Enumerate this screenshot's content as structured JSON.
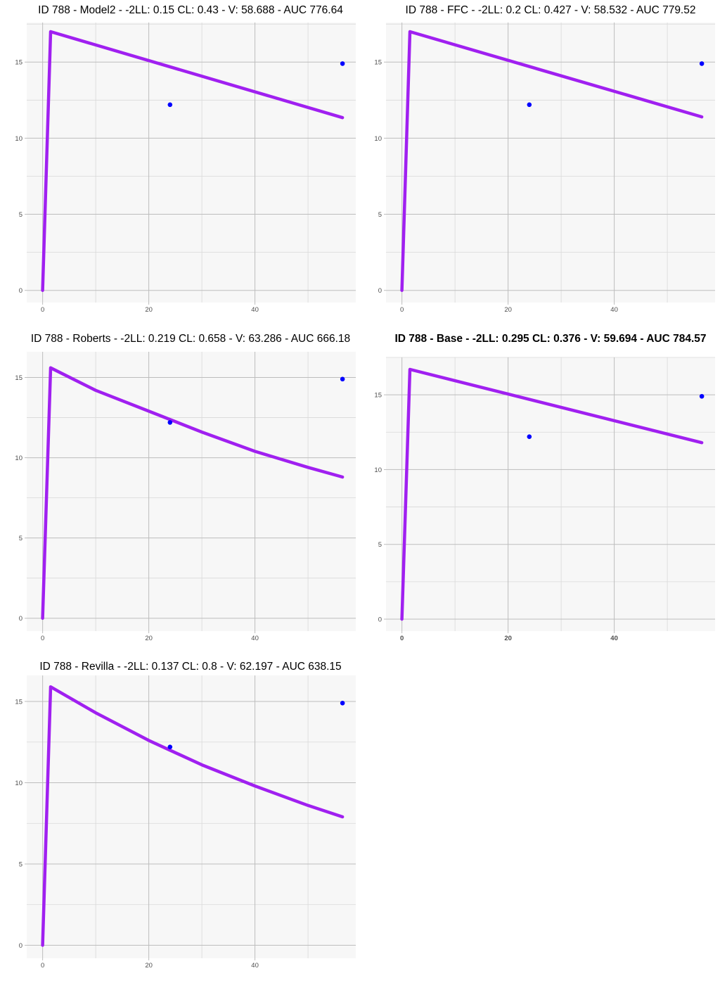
{
  "colors": {
    "panel_background": "#f7f7f7",
    "grid_major": "#bdbdbd",
    "grid_minor": "#d9d9d9",
    "model_line": "#a020f0",
    "observed_points": "#0000ff",
    "tick_text": "#4d4d4d"
  },
  "chart_data": [
    {
      "type": "line",
      "title": "ID 788 - Model2 - -2LL: 0.15 CL: 0.43 - V: 58.688 - AUC 776.64",
      "title_bold": false,
      "xlabel": "",
      "ylabel": "",
      "xlim": [
        -3,
        59
      ],
      "ylim": [
        -0.8,
        17.6
      ],
      "x_ticks": [
        0,
        20,
        40
      ],
      "y_ticks": [
        0,
        5,
        10,
        15
      ],
      "grid": true,
      "legend": "none",
      "series": [
        {
          "kind": "line",
          "x": [
            0,
            1.5,
            56.5
          ],
          "y": [
            0,
            17.0,
            11.35
          ]
        },
        {
          "kind": "points",
          "x": [
            24,
            56.5
          ],
          "y": [
            12.2,
            14.9
          ]
        }
      ]
    },
    {
      "type": "line",
      "title": "ID 788 - FFC - -2LL: 0.2 CL: 0.427 - V: 58.532 - AUC 779.52",
      "title_bold": false,
      "xlabel": "",
      "ylabel": "",
      "xlim": [
        -3,
        59
      ],
      "ylim": [
        -0.8,
        17.6
      ],
      "x_ticks": [
        0,
        20,
        40
      ],
      "y_ticks": [
        0,
        5,
        10,
        15
      ],
      "grid": true,
      "legend": "none",
      "series": [
        {
          "kind": "line",
          "x": [
            0,
            1.5,
            56.5
          ],
          "y": [
            0,
            17.0,
            11.4
          ]
        },
        {
          "kind": "points",
          "x": [
            24,
            56.5
          ],
          "y": [
            12.2,
            14.9
          ]
        }
      ]
    },
    {
      "type": "line",
      "title": "ID 788 - Roberts - -2LL: 0.219 CL: 0.658 - V: 63.286 - AUC 666.18",
      "title_bold": false,
      "xlabel": "",
      "ylabel": "",
      "xlim": [
        -3,
        59
      ],
      "ylim": [
        -0.8,
        16.6
      ],
      "x_ticks": [
        0,
        20,
        40
      ],
      "y_ticks": [
        0,
        5,
        10,
        15
      ],
      "grid": true,
      "legend": "none",
      "series": [
        {
          "kind": "line",
          "x": [
            0,
            1.5,
            10,
            20,
            30,
            40,
            50,
            56.5
          ],
          "y": [
            0,
            15.6,
            14.2,
            12.9,
            11.6,
            10.4,
            9.4,
            8.8
          ]
        },
        {
          "kind": "points",
          "x": [
            24,
            56.5
          ],
          "y": [
            12.2,
            14.9
          ]
        }
      ]
    },
    {
      "type": "line",
      "title": "ID 788 - Base - -2LL: 0.295 CL: 0.376 - V: 59.694 - AUC 784.57",
      "title_bold": true,
      "xlabel": "",
      "ylabel": "",
      "xlim": [
        -3,
        59
      ],
      "ylim": [
        -0.8,
        17.5
      ],
      "x_ticks": [
        0,
        20,
        40
      ],
      "y_ticks": [
        0,
        5,
        10,
        15
      ],
      "grid": true,
      "legend": "none",
      "series": [
        {
          "kind": "line",
          "x": [
            0,
            1.5,
            56.5
          ],
          "y": [
            0,
            16.7,
            11.8
          ]
        },
        {
          "kind": "points",
          "x": [
            24,
            56.5
          ],
          "y": [
            12.2,
            14.9
          ]
        }
      ]
    },
    {
      "type": "line",
      "title": "ID 788 - Revilla - -2LL: 0.137 CL: 0.8 - V: 62.197 - AUC 638.15",
      "title_bold": false,
      "xlabel": "",
      "ylabel": "",
      "xlim": [
        -3,
        59
      ],
      "ylim": [
        -0.8,
        16.6
      ],
      "x_ticks": [
        0,
        20,
        40
      ],
      "y_ticks": [
        0,
        5,
        10,
        15
      ],
      "grid": true,
      "legend": "none",
      "series": [
        {
          "kind": "line",
          "x": [
            0,
            1.5,
            10,
            20,
            30,
            40,
            50,
            56.5
          ],
          "y": [
            0,
            15.9,
            14.3,
            12.6,
            11.1,
            9.8,
            8.6,
            7.9
          ]
        },
        {
          "kind": "points",
          "x": [
            24,
            56.5
          ],
          "y": [
            12.2,
            14.9
          ]
        }
      ]
    }
  ]
}
